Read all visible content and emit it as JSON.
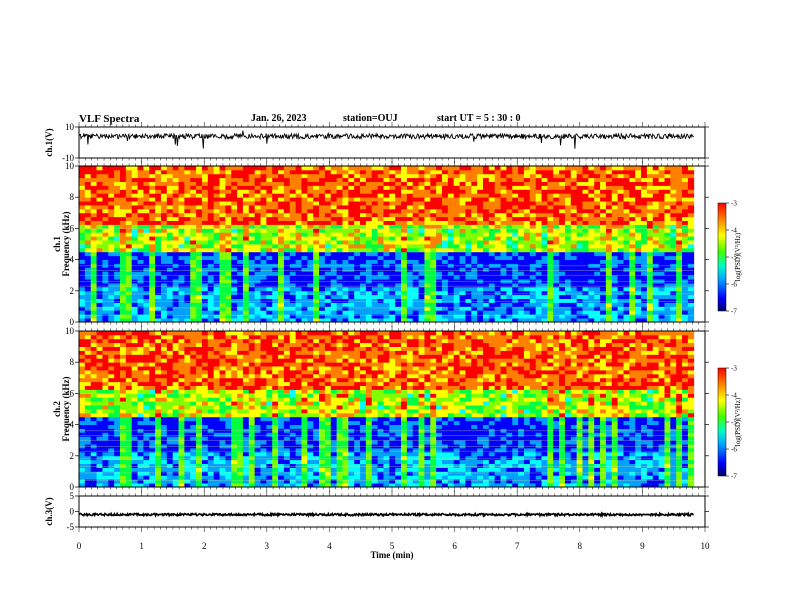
{
  "header": {
    "title": "VLF Spectra",
    "date": "Jan. 26, 2023",
    "station": "station=OUJ",
    "start": "start UT =  5 : 30 : 0"
  },
  "chart_data": {
    "type": "heatmap",
    "x": {
      "label": "Time (min)",
      "range": [
        0,
        10
      ],
      "ticks": [
        "0",
        "1",
        "2",
        "3",
        "4",
        "5",
        "6",
        "7",
        "8",
        "9",
        "10"
      ]
    },
    "panels": [
      {
        "id": "ch1-waveform",
        "type": "line",
        "ylabel": "ch.1(V)",
        "ylim": [
          -10,
          10
        ],
        "ytick_labels": [
          "10",
          "-10"
        ],
        "series_baseline": 4,
        "data_end_min": 9.82
      },
      {
        "id": "ch1-spectrogram",
        "type": "heatmap",
        "ylabel": "ch.1 Frequency (kHz)",
        "ylabel_parts": [
          "ch.1",
          "Frequency (kHz)"
        ],
        "ylim": [
          0,
          10
        ],
        "ytick_labels": [
          "0",
          "2",
          "4",
          "6",
          "8",
          "10"
        ],
        "colorbar": {
          "label": "log(PSD)(V²/Hz)",
          "range": [
            -7,
            -3
          ],
          "tick_labels": [
            "-3",
            "-4",
            "-5",
            "-6",
            "-7"
          ]
        }
      },
      {
        "id": "ch2-spectrogram",
        "type": "heatmap",
        "ylabel": "ch.2 Frequency (kHz)",
        "ylabel_parts": [
          "ch.2",
          "Frequency (kHz)"
        ],
        "ylim": [
          0,
          10
        ],
        "ytick_labels": [
          "0",
          "2",
          "4",
          "6",
          "8",
          "10"
        ],
        "colorbar": {
          "label": "log(PSD)(V²/Hz)",
          "range": [
            -7,
            -3
          ],
          "tick_labels": [
            "-3",
            "-4",
            "-5",
            "-6",
            "-7"
          ]
        }
      },
      {
        "id": "ch3-waveform",
        "type": "line",
        "ylabel": "ch.3(V)",
        "ylim": [
          -5,
          5
        ],
        "ytick_labels": [
          "5",
          "0",
          "-5"
        ],
        "series_baseline": -1,
        "data_end_min": 9.82
      }
    ],
    "colormap": [
      "#000080",
      "#0000ff",
      "#00a0ff",
      "#00ffff",
      "#00ff40",
      "#80ff00",
      "#ffff00",
      "#ff8000",
      "#ff0000"
    ],
    "data_end_min": 9.82
  }
}
